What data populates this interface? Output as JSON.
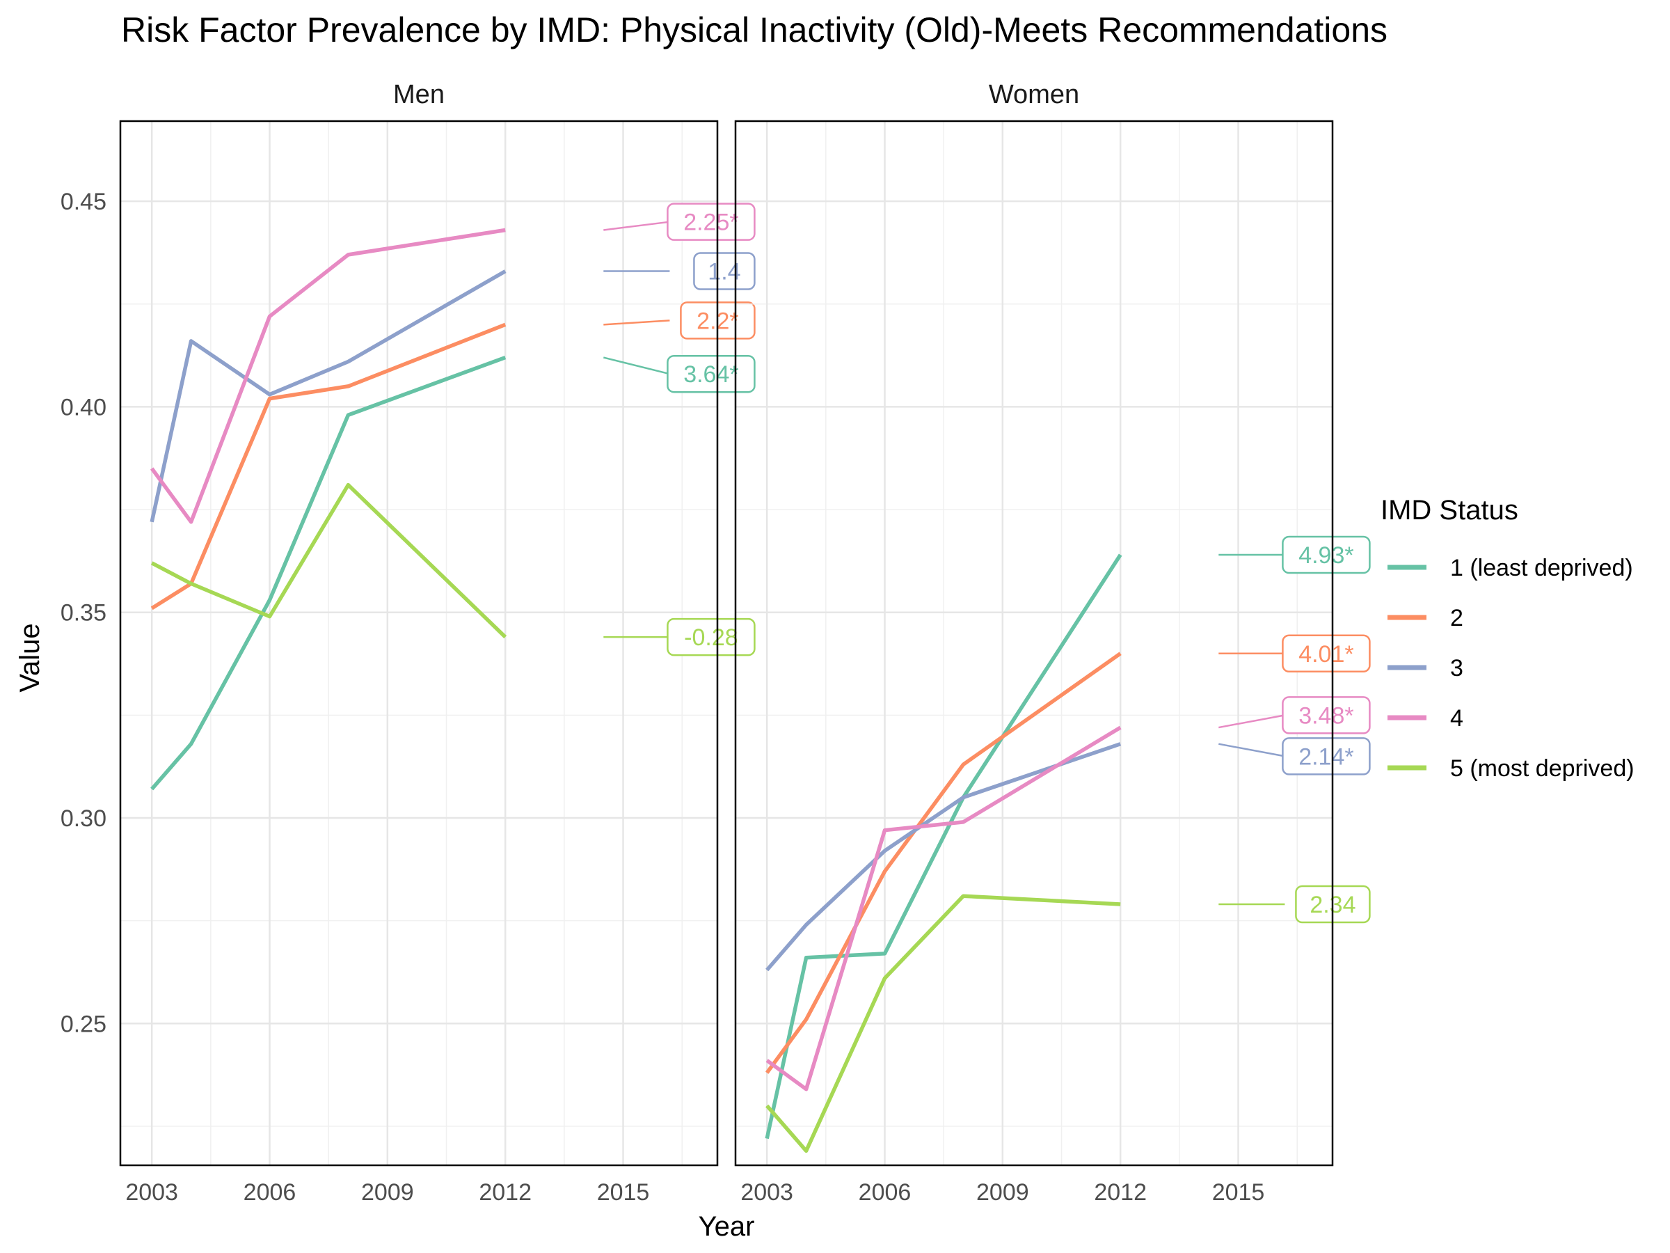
{
  "chart_data": {
    "type": "line",
    "title": "Risk Factor Prevalence by IMD: Physical Inactivity (Old)-Meets Recommendations",
    "xlabel": "Year",
    "ylabel": "Value",
    "xlim": [
      2002.2,
      2017.4
    ],
    "ylim": [
      0.2155,
      0.4695
    ],
    "x_ticks": [
      2003,
      2006,
      2009,
      2012,
      2015
    ],
    "y_ticks": [
      0.25,
      0.3,
      0.35,
      0.4,
      0.45
    ],
    "y_tick_labels": [
      "0.25",
      "0.30",
      "0.35",
      "0.40",
      "0.45"
    ],
    "x_tick_labels": [
      "2003",
      "2006",
      "2009",
      "2012",
      "2015"
    ],
    "grid": true,
    "legend": {
      "title": "IMD Status",
      "position": "right",
      "entries": [
        {
          "label": "1 (least deprived)",
          "color": "#66c2a5"
        },
        {
          "label": "2",
          "color": "#fc8d62"
        },
        {
          "label": "3",
          "color": "#8da0cb"
        },
        {
          "label": "4",
          "color": "#e78ac3"
        },
        {
          "label": "5 (most deprived)",
          "color": "#a6d854"
        }
      ]
    },
    "panels": [
      {
        "name": "Men",
        "series": [
          {
            "imd": "1 (least deprived)",
            "color": "#66c2a5",
            "x": [
              2003,
              2004,
              2006,
              2008,
              2012
            ],
            "y": [
              0.307,
              0.318,
              0.353,
              0.398,
              0.412
            ],
            "annotation": "3.64*",
            "annotation_y": 0.408
          },
          {
            "imd": "2",
            "color": "#fc8d62",
            "x": [
              2003,
              2004,
              2006,
              2008,
              2012
            ],
            "y": [
              0.351,
              0.357,
              0.402,
              0.405,
              0.42
            ],
            "annotation": "2.2*",
            "annotation_y": 0.421
          },
          {
            "imd": "3",
            "color": "#8da0cb",
            "x": [
              2003,
              2004,
              2006,
              2008,
              2012
            ],
            "y": [
              0.372,
              0.416,
              0.403,
              0.411,
              0.433
            ],
            "annotation": "1.4",
            "annotation_y": 0.433
          },
          {
            "imd": "4",
            "color": "#e78ac3",
            "x": [
              2003,
              2004,
              2006,
              2008,
              2012
            ],
            "y": [
              0.385,
              0.372,
              0.422,
              0.437,
              0.443
            ],
            "annotation": "2.25*",
            "annotation_y": 0.445
          },
          {
            "imd": "5 (most deprived)",
            "color": "#a6d854",
            "x": [
              2003,
              2004,
              2006,
              2008,
              2012
            ],
            "y": [
              0.362,
              0.357,
              0.349,
              0.381,
              0.344
            ],
            "annotation": "-0.28",
            "annotation_y": 0.344
          }
        ]
      },
      {
        "name": "Women",
        "series": [
          {
            "imd": "1 (least deprived)",
            "color": "#66c2a5",
            "x": [
              2003,
              2004,
              2006,
              2008,
              2012
            ],
            "y": [
              0.222,
              0.266,
              0.267,
              0.305,
              0.364
            ],
            "annotation": "4.93*",
            "annotation_y": 0.364
          },
          {
            "imd": "2",
            "color": "#fc8d62",
            "x": [
              2003,
              2004,
              2006,
              2008,
              2012
            ],
            "y": [
              0.238,
              0.251,
              0.287,
              0.313,
              0.34
            ],
            "annotation": "4.01*",
            "annotation_y": 0.34
          },
          {
            "imd": "3",
            "color": "#8da0cb",
            "x": [
              2003,
              2004,
              2006,
              2008,
              2012
            ],
            "y": [
              0.263,
              0.274,
              0.292,
              0.305,
              0.318
            ],
            "annotation": "2.14*",
            "annotation_y": 0.315
          },
          {
            "imd": "4",
            "color": "#e78ac3",
            "x": [
              2003,
              2004,
              2006,
              2008,
              2012
            ],
            "y": [
              0.241,
              0.234,
              0.297,
              0.299,
              0.322
            ],
            "annotation": "3.48*",
            "annotation_y": 0.325
          },
          {
            "imd": "5 (most deprived)",
            "color": "#a6d854",
            "x": [
              2003,
              2004,
              2006,
              2008,
              2012
            ],
            "y": [
              0.23,
              0.219,
              0.261,
              0.281,
              0.279
            ],
            "annotation": "2.34",
            "annotation_y": 0.279
          }
        ]
      }
    ]
  }
}
